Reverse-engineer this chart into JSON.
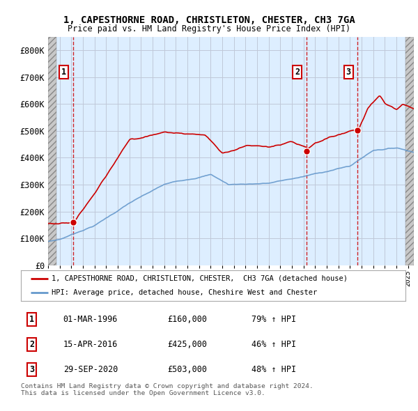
{
  "title": "1, CAPESTHORNE ROAD, CHRISTLETON, CHESTER, CH3 7GA",
  "subtitle": "Price paid vs. HM Land Registry's House Price Index (HPI)",
  "ylim": [
    0,
    850000
  ],
  "yticks": [
    0,
    100000,
    200000,
    300000,
    400000,
    500000,
    600000,
    700000,
    800000
  ],
  "ytick_labels": [
    "£0",
    "£100K",
    "£200K",
    "£300K",
    "£400K",
    "£500K",
    "£600K",
    "£700K",
    "£800K"
  ],
  "plot_bg_color": "#ddeeff",
  "grid_color": "#c0c8d8",
  "sale_color": "#cc0000",
  "hpi_color": "#6699cc",
  "legend_sale": "1, CAPESTHORNE ROAD, CHRISTLETON, CHESTER,  CH3 7GA (detached house)",
  "legend_hpi": "HPI: Average price, detached house, Cheshire West and Chester",
  "transactions": [
    {
      "label": "1",
      "date": "1996-03-01",
      "price": 160000,
      "note": "01-MAR-1996",
      "pct": "79% ↑ HPI"
    },
    {
      "label": "2",
      "date": "2016-04-15",
      "price": 425000,
      "note": "15-APR-2016",
      "pct": "46% ↑ HPI"
    },
    {
      "label": "3",
      "date": "2020-09-29",
      "price": 503000,
      "note": "29-SEP-2020",
      "pct": "48% ↑ HPI"
    }
  ],
  "footer": "Contains HM Land Registry data © Crown copyright and database right 2024.\nThis data is licensed under the Open Government Licence v3.0.",
  "xstart": 1994.0,
  "xend": 2025.5
}
